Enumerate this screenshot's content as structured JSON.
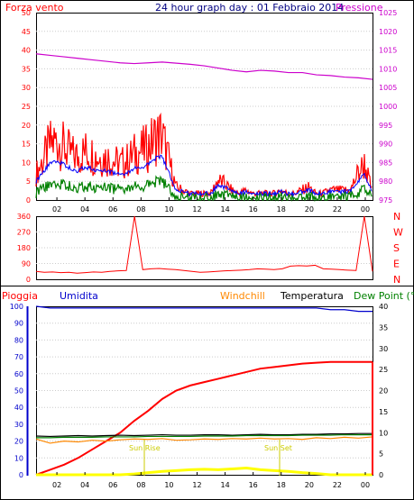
{
  "top": {
    "left_label": "Forza vento",
    "title": "24 hour graph day : 01 Febbraio 2014",
    "right_label": "Pressione"
  },
  "compass": [
    "N",
    "W",
    "S",
    "E",
    "N"
  ],
  "lower": {
    "labels": {
      "rain": "Pioggia",
      "humidity": "Umidita",
      "windchill": "Windchill",
      "temperature": "Temperatura",
      "dewpoint": "Dew Point (°C"
    },
    "sunrise": "Sun Rise",
    "sunset": "Sun Set"
  },
  "colors": {
    "wind": "#ff0000",
    "gust": "#0000ff",
    "avg": "#008000",
    "pressure": "#cc00cc",
    "rain": "#ff0000",
    "humidity": "#0000cc",
    "windchill": "#ff8800",
    "temperature": "#000000",
    "dewpoint": "#008000",
    "sun": "#ffff00",
    "axis_left": "#ff0000",
    "axis_right": "#cc00cc",
    "axis_lower_left": "#0000cc"
  },
  "chart_data": [
    {
      "type": "line",
      "x_ticks": [
        "02",
        "04",
        "06",
        "08",
        "10",
        "12",
        "14",
        "16",
        "18",
        "20",
        "22",
        "00"
      ],
      "y_left_ticks": [
        "0",
        "5",
        "10",
        "15",
        "20",
        "25",
        "30",
        "35",
        "40",
        "45",
        "50"
      ],
      "y_right_ticks": [
        "975",
        "980",
        "985",
        "990",
        "995",
        "1000",
        "1005",
        "1010",
        "1015",
        "1020",
        "1025"
      ],
      "ylim_left": [
        0,
        50
      ],
      "ylim_right": [
        975,
        1025
      ],
      "series": [
        {
          "name": "Forza vento",
          "axis": "left",
          "values": [
            8,
            12,
            17,
            18,
            16,
            14,
            13,
            15,
            14,
            13,
            13,
            12,
            11,
            12,
            14,
            15,
            16,
            19,
            20,
            12,
            4,
            3,
            2,
            2,
            2,
            2,
            6,
            5,
            3,
            2,
            3,
            2,
            2,
            2,
            2,
            3,
            2,
            2,
            3,
            4,
            2,
            2,
            3,
            3,
            3,
            3,
            8,
            11,
            3
          ]
        },
        {
          "name": "Pressione",
          "axis": "right",
          "values": [
            1014,
            1013.6,
            1013.2,
            1012.8,
            1012.4,
            1012,
            1011.6,
            1011.4,
            1011.6,
            1011.8,
            1011.5,
            1011.2,
            1010.8,
            1010.2,
            1009.6,
            1009.2,
            1009.6,
            1009.4,
            1009,
            1009,
            1008.4,
            1008.2,
            1007.8,
            1007.6,
            1007.2
          ]
        }
      ]
    },
    {
      "type": "line",
      "x_ticks": [
        "02",
        "04",
        "06",
        "08",
        "10",
        "12",
        "14",
        "16",
        "18",
        "20",
        "22",
        "00"
      ],
      "y_ticks": [
        "0",
        "90",
        "180",
        "270",
        "360"
      ],
      "ylim": [
        0,
        360
      ],
      "series": [
        {
          "name": "direction",
          "values": [
            45,
            40,
            42,
            38,
            40,
            35,
            38,
            42,
            40,
            45,
            48,
            50,
            360,
            55,
            60,
            62,
            58,
            55,
            50,
            45,
            40,
            42,
            45,
            48,
            50,
            52,
            55,
            60,
            58,
            55,
            60,
            75,
            78,
            76,
            80,
            60,
            58,
            55,
            52,
            50,
            360,
            45
          ]
        }
      ]
    },
    {
      "type": "line",
      "x_ticks": [
        "02",
        "04",
        "06",
        "08",
        "10",
        "12",
        "14",
        "16",
        "18",
        "20",
        "22",
        "00"
      ],
      "y_left_ticks": [
        "0",
        "10",
        "20",
        "30",
        "40",
        "50",
        "60",
        "70",
        "80",
        "90",
        "100"
      ],
      "y_right_ticks": [
        "0",
        "5",
        "10",
        "15",
        "20",
        "25",
        "30",
        "35",
        "40"
      ],
      "ylim_left": [
        0,
        100
      ],
      "ylim_right": [
        0,
        40
      ],
      "series": [
        {
          "name": "Pioggia",
          "axis": "left",
          "values": [
            0,
            3,
            6,
            10,
            15,
            20,
            25,
            32,
            38,
            45,
            50,
            53,
            55,
            57,
            59,
            61,
            63,
            64,
            65,
            66,
            66.5,
            67,
            67,
            67,
            67
          ]
        },
        {
          "name": "Umidita",
          "axis": "left",
          "values": [
            100,
            99,
            99,
            99,
            99,
            99,
            99,
            99,
            99,
            99,
            99,
            99,
            99,
            99,
            99,
            99,
            99,
            99,
            99,
            99,
            99,
            98,
            98,
            97,
            97
          ]
        },
        {
          "name": "Windchill",
          "axis": "right",
          "values": [
            8.5,
            7.5,
            8,
            7.8,
            8.2,
            8,
            8.3,
            8.5,
            8.4,
            8.6,
            8.2,
            8.3,
            8.5,
            8.4,
            8.6,
            8.5,
            8.7,
            8.5,
            8.6,
            8.4,
            8.8,
            8.6,
            8.9,
            8.7,
            9
          ]
        },
        {
          "name": "Temperatura",
          "axis": "right",
          "values": [
            9.2,
            9.1,
            9.2,
            9.3,
            9.2,
            9.3,
            9.4,
            9.3,
            9.4,
            9.5,
            9.4,
            9.4,
            9.5,
            9.5,
            9.4,
            9.5,
            9.6,
            9.5,
            9.5,
            9.6,
            9.6,
            9.7,
            9.7,
            9.8,
            9.8
          ]
        },
        {
          "name": "Dew Point (°C",
          "axis": "right",
          "values": [
            8.8,
            8.8,
            8.9,
            8.9,
            8.9,
            9,
            9,
            9,
            9.1,
            9.1,
            9.1,
            9.1,
            9.2,
            9.2,
            9.2,
            9.3,
            9.3,
            9.3,
            9.3,
            9.4,
            9.4,
            9.4,
            9.5,
            9.5,
            9.5
          ]
        },
        {
          "name": "sun",
          "axis": "right",
          "values": [
            0,
            0,
            0,
            0,
            0,
            0,
            0,
            0.2,
            0.5,
            0.8,
            1,
            1.2,
            1.3,
            1.2,
            1.4,
            1.6,
            1.2,
            1,
            0.8,
            0.5,
            0.3,
            0,
            0,
            0,
            0
          ]
        }
      ]
    }
  ]
}
